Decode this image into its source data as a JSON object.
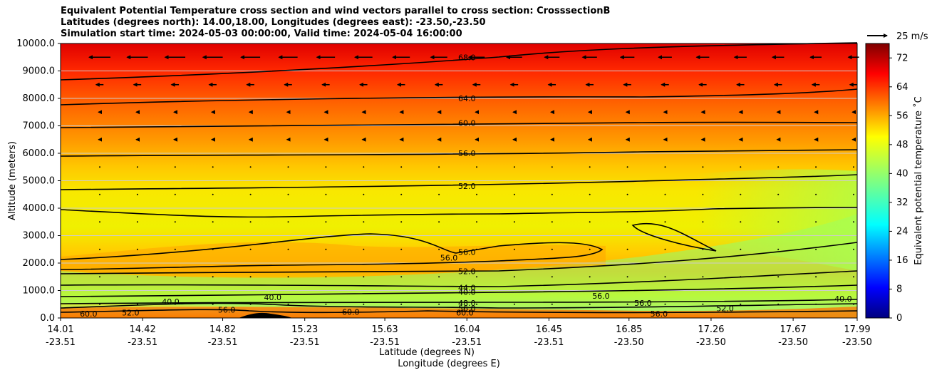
{
  "chart_data": {
    "type": "heatmap",
    "title_lines": [
      "Equivalent Potential Temperature cross section and wind vectors parallel to cross section: CrosssectionB",
      "Latitudes (degrees north): 14.00,18.00, Longitudes (degrees east): -23.50,-23.50",
      "Simulation start time: 2024-05-03 00:00:00, Valid time: 2024-05-04 16:00:00"
    ],
    "ylabel": "Altitude (meters)",
    "xlabel_lat": "Latitude (degrees N)",
    "xlabel_lon": "Longitude (degrees E)",
    "ylim": [
      0,
      10000
    ],
    "y_ticks": [
      "0.0",
      "1000.0",
      "2000.0",
      "3000.0",
      "4000.0",
      "5000.0",
      "6000.0",
      "7000.0",
      "8000.0",
      "9000.0",
      "10000.0"
    ],
    "x_ticks_lat": [
      "14.01",
      "14.42",
      "14.82",
      "15.23",
      "15.63",
      "16.04",
      "16.45",
      "16.85",
      "17.26",
      "17.67",
      "17.99"
    ],
    "x_ticks_lon": [
      "-23.51",
      "-23.51",
      "-23.51",
      "-23.51",
      "-23.51",
      "-23.51",
      "-23.51",
      "-23.50",
      "-23.50",
      "-23.50",
      "-23.50"
    ],
    "colorbar": {
      "label": "Equivalent potential temperature ˚C",
      "ticks": [
        "0",
        "8",
        "16",
        "24",
        "32",
        "40",
        "48",
        "56",
        "64",
        "72"
      ],
      "range": [
        0,
        76
      ],
      "colormap": "jet"
    },
    "quiver_key": "25 m/s",
    "grid": "horizontal",
    "contour_labels": [
      {
        "text": "68.0",
        "lat": 16.04,
        "alt": 9500
      },
      {
        "text": "64.0",
        "lat": 16.04,
        "alt": 8000
      },
      {
        "text": "60.0",
        "lat": 16.04,
        "alt": 7100
      },
      {
        "text": "56.0",
        "lat": 16.04,
        "alt": 6000
      },
      {
        "text": "52.0",
        "lat": 16.04,
        "alt": 4800
      },
      {
        "text": "56.0",
        "lat": 15.95,
        "alt": 2200
      },
      {
        "text": "56.0",
        "lat": 16.04,
        "alt": 2400
      },
      {
        "text": "52.0",
        "lat": 16.04,
        "alt": 1700
      },
      {
        "text": "44.0",
        "lat": 16.04,
        "alt": 1100
      },
      {
        "text": "40.0",
        "lat": 16.04,
        "alt": 950
      },
      {
        "text": "48.0",
        "lat": 16.04,
        "alt": 550
      },
      {
        "text": "56.0",
        "lat": 16.04,
        "alt": 350
      },
      {
        "text": "60.0",
        "lat": 16.03,
        "alt": 200
      },
      {
        "text": "60.0",
        "lat": 14.15,
        "alt": 150
      },
      {
        "text": "52.0",
        "lat": 14.36,
        "alt": 200
      },
      {
        "text": "40.0",
        "lat": 14.56,
        "alt": 600
      },
      {
        "text": "56.0",
        "lat": 14.84,
        "alt": 300
      },
      {
        "text": "40.0",
        "lat": 15.07,
        "alt": 750
      },
      {
        "text": "60.0",
        "lat": 15.46,
        "alt": 220
      },
      {
        "text": "56.0",
        "lat": 16.71,
        "alt": 800
      },
      {
        "text": "56.0",
        "lat": 16.92,
        "alt": 550
      },
      {
        "text": "56.0",
        "lat": 17.0,
        "alt": 150
      },
      {
        "text": "52.0",
        "lat": 17.33,
        "alt": 350
      },
      {
        "text": "40.0",
        "lat": 17.92,
        "alt": 700
      }
    ]
  }
}
